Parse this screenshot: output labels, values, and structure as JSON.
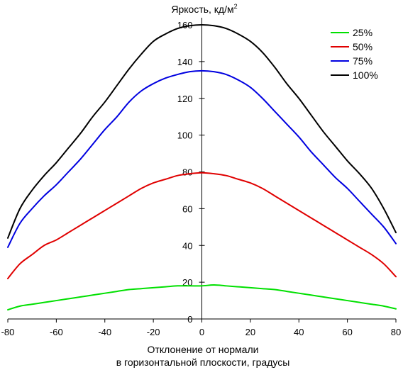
{
  "chart_data": {
    "type": "line",
    "title": "Яркость, кд/м",
    "title_superscript": "2",
    "xlabel_line1": "Отклонение от нормали",
    "xlabel_line2": "в горизонтальной плоскости, градусы",
    "ylabel": "",
    "xlim": [
      -80,
      80
    ],
    "ylim": [
      0,
      160
    ],
    "xticks": [
      -80,
      -60,
      -40,
      -20,
      0,
      20,
      40,
      60,
      80
    ],
    "yticks": [
      0,
      20,
      40,
      60,
      80,
      100,
      120,
      140,
      160
    ],
    "legend_position": "top-right",
    "grid": false,
    "x": [
      -80,
      -75,
      -70,
      -65,
      -60,
      -55,
      -50,
      -45,
      -40,
      -35,
      -30,
      -25,
      -20,
      -15,
      -10,
      -5,
      0,
      5,
      10,
      15,
      20,
      25,
      30,
      35,
      40,
      45,
      50,
      55,
      60,
      65,
      70,
      75,
      80
    ],
    "series": [
      {
        "name": "25%",
        "color": "#00e000",
        "values": [
          5,
          7,
          8,
          9,
          10,
          11,
          12,
          13,
          14,
          15,
          16,
          16.5,
          17,
          17.5,
          18,
          18,
          18,
          18.5,
          18,
          17.5,
          17,
          16.5,
          16,
          15,
          14,
          13,
          12,
          11,
          10,
          9,
          8,
          7,
          5.5
        ]
      },
      {
        "name": "50%",
        "color": "#e00000",
        "values": [
          22,
          30,
          35,
          40,
          43,
          47,
          51,
          55,
          59,
          63,
          67,
          71,
          74,
          76,
          78,
          79,
          79.5,
          79,
          78,
          76,
          74,
          71,
          67,
          63,
          59,
          55,
          51,
          47,
          43,
          39,
          35,
          30,
          23
        ]
      },
      {
        "name": "75%",
        "color": "#0000e0",
        "values": [
          39,
          52,
          60,
          67,
          73,
          80,
          87,
          95,
          103,
          110,
          118,
          124,
          128,
          131,
          133,
          134.5,
          135,
          134.5,
          133,
          130,
          126,
          120,
          113,
          106,
          99,
          91,
          84,
          77,
          71,
          64,
          57,
          50,
          41
        ]
      },
      {
        "name": "100%",
        "color": "#000000",
        "values": [
          44,
          60,
          70,
          78,
          85,
          93,
          101,
          110,
          118,
          127,
          136,
          144,
          151,
          155,
          158,
          159.5,
          160,
          159.5,
          158,
          155,
          151,
          145,
          137,
          128,
          120,
          111,
          102,
          94,
          86,
          79,
          71,
          60,
          47
        ]
      }
    ]
  }
}
